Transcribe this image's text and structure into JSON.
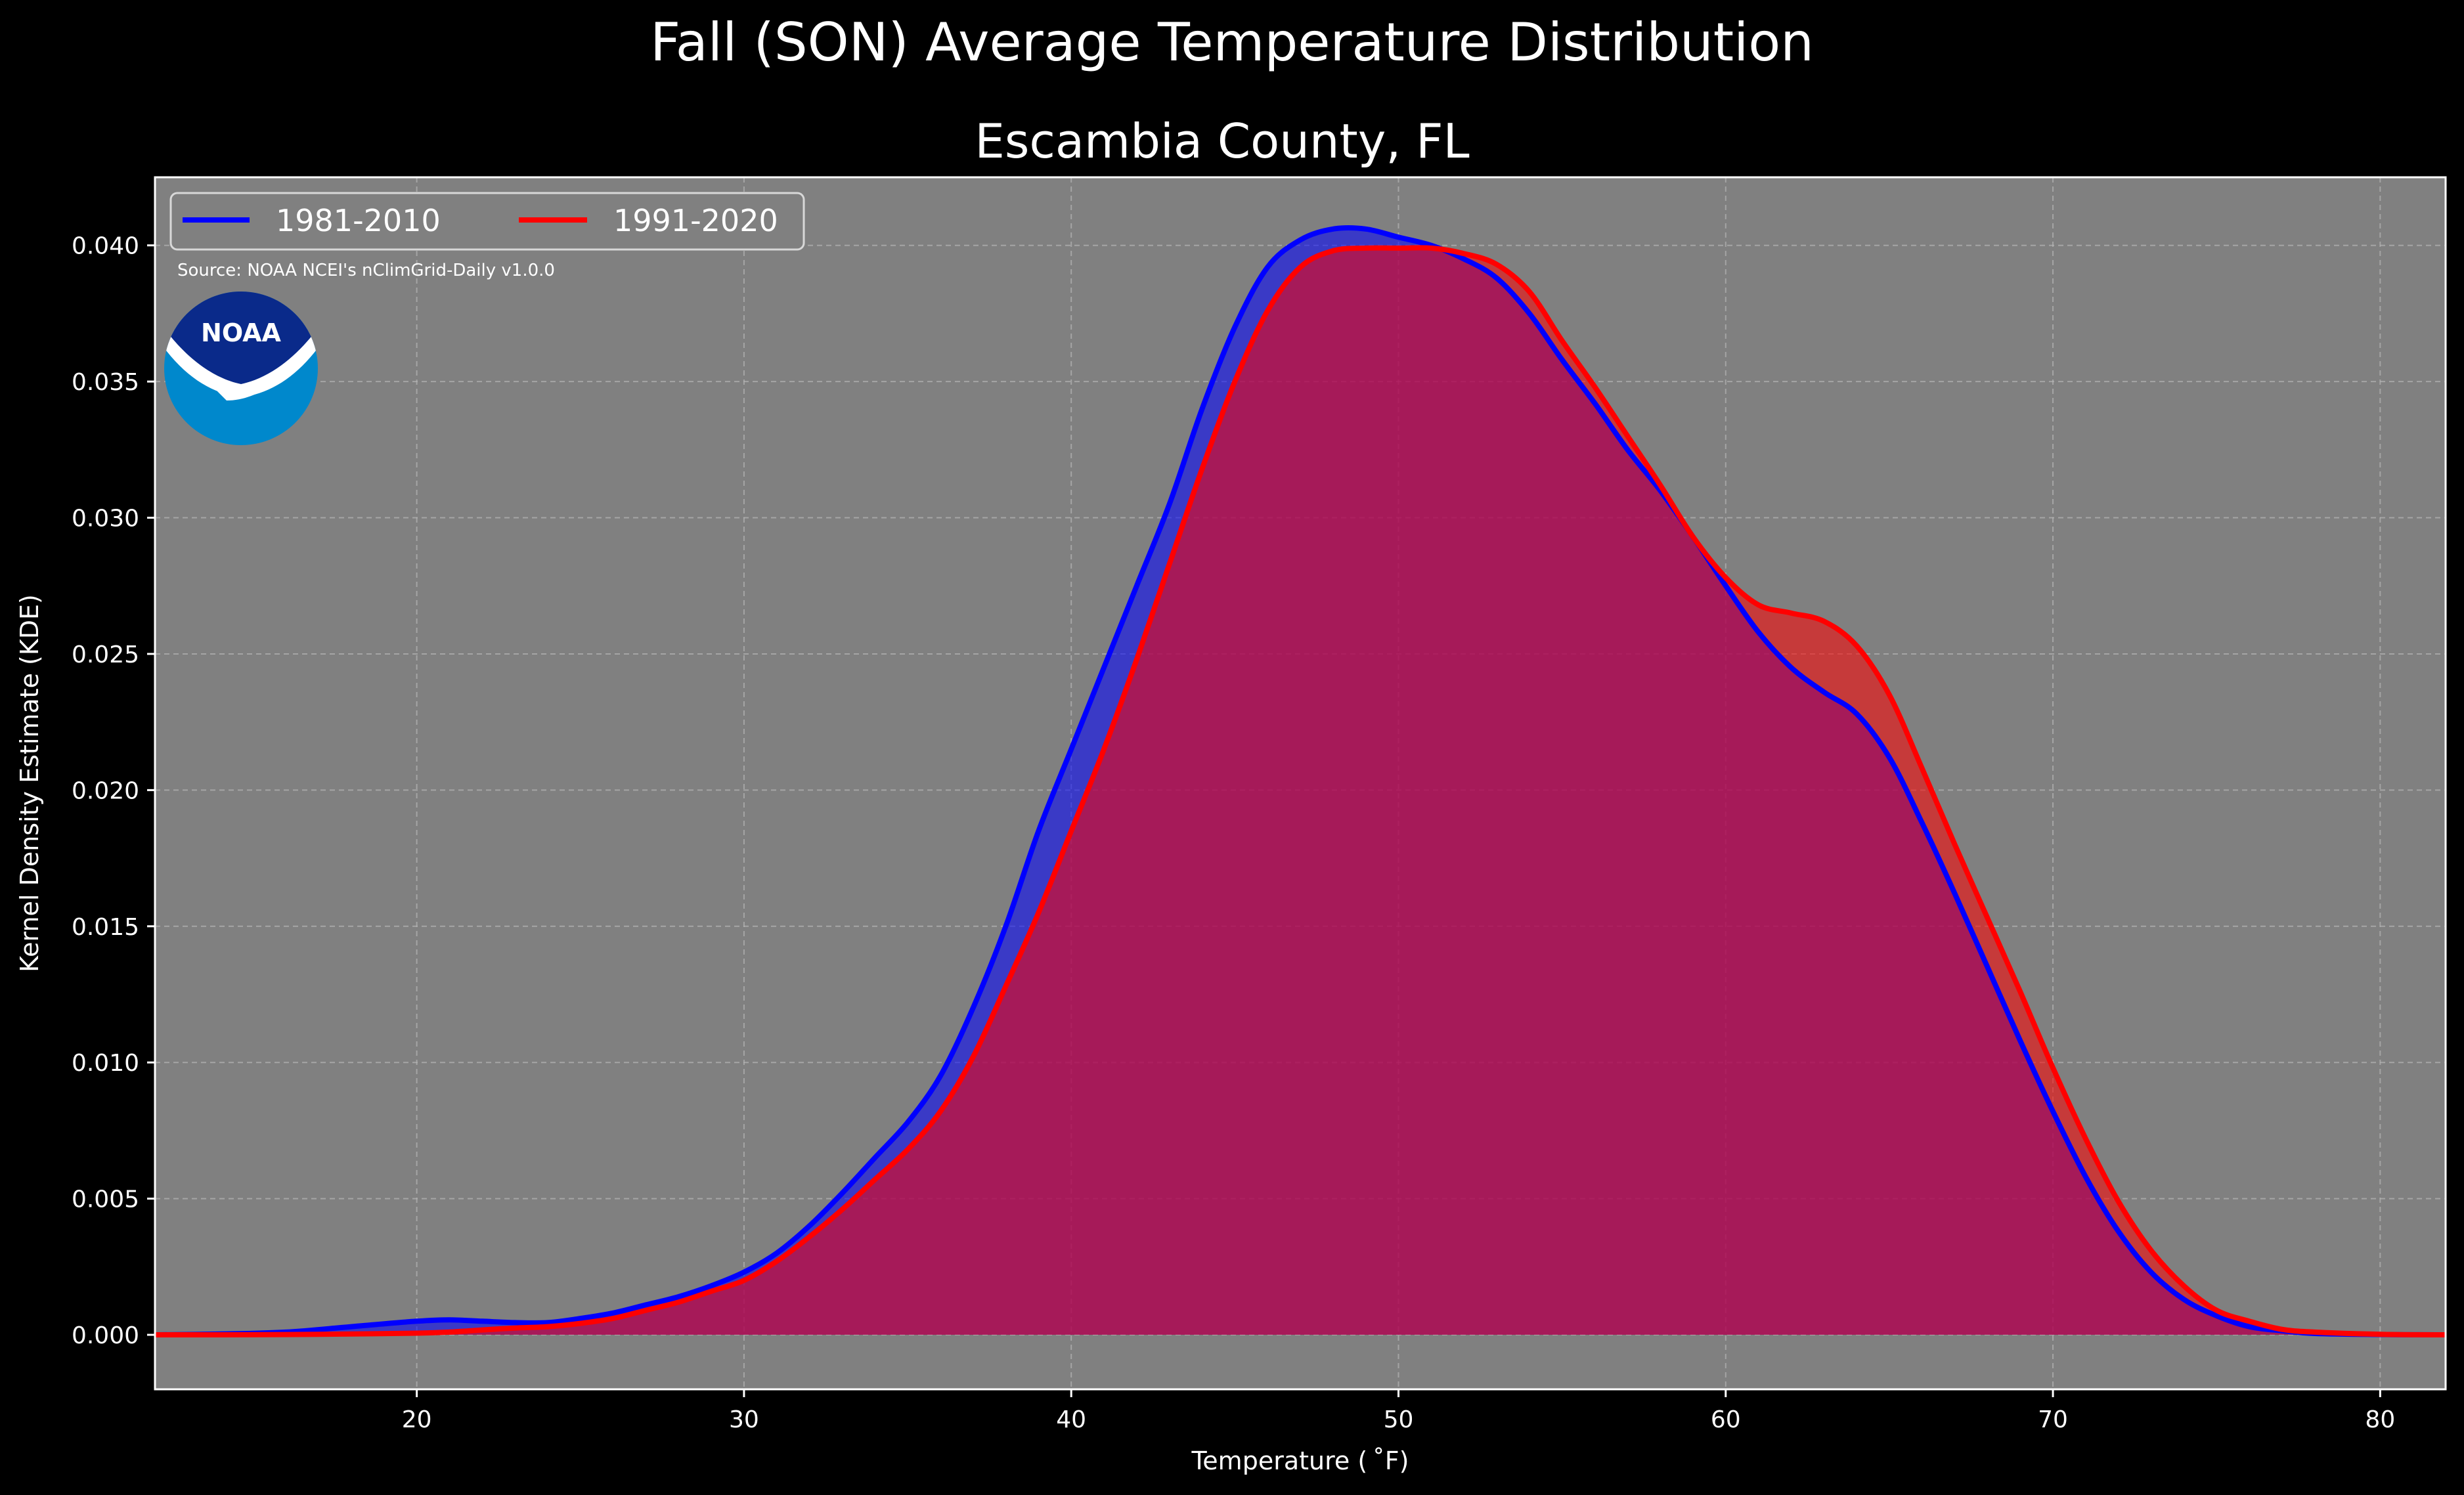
{
  "page": {
    "title": "Fall (SON) Average Temperature Distribution"
  },
  "chart_data": {
    "type": "area",
    "title": "Escambia County, FL",
    "xlabel": "Temperature ($^\\circ$F)",
    "xlabel_display": "Temperature ( ˚F)",
    "ylabel": "Kernel Density Estimate (KDE)",
    "xlim": [
      12,
      82
    ],
    "ylim": [
      -0.002,
      0.0425
    ],
    "x_ticks": [
      20,
      30,
      40,
      50,
      60,
      70,
      80
    ],
    "y_ticks": [
      0.0,
      0.005,
      0.01,
      0.015,
      0.02,
      0.025,
      0.03,
      0.035,
      0.04
    ],
    "y_tick_labels": [
      "0.000",
      "0.005",
      "0.010",
      "0.015",
      "0.020",
      "0.025",
      "0.030",
      "0.035",
      "0.040"
    ],
    "grid": true,
    "legend": "top-left",
    "source": "Source: NOAA NCEI's nClimGrid-Daily v1.0.0",
    "logo_text": "NOAA",
    "colors": {
      "background": "#000000",
      "plot_background": "#808080",
      "series_1": "#0000ff",
      "series_2": "#ff0000",
      "overlap_fill": "#9e1f5c"
    },
    "series": [
      {
        "name": "1981-2010",
        "color": "#0000ff",
        "x": [
          12,
          14,
          16,
          18,
          20,
          21,
          22,
          23,
          24,
          25,
          26,
          27,
          28,
          29,
          30,
          31,
          32,
          33,
          34,
          35,
          36,
          37,
          38,
          39,
          40,
          41,
          42,
          43,
          44,
          45,
          46,
          47,
          48,
          49,
          50,
          51,
          52,
          53,
          54,
          55,
          56,
          57,
          58,
          59,
          60,
          61,
          62,
          63,
          64,
          65,
          66,
          67,
          68,
          69,
          70,
          71,
          72,
          73,
          74,
          75,
          76,
          77,
          78,
          80,
          82
        ],
        "y": [
          0.0,
          3e-05,
          0.0001,
          0.0003,
          0.0005,
          0.00055,
          0.0005,
          0.00045,
          0.00045,
          0.0006,
          0.0008,
          0.0011,
          0.0014,
          0.0018,
          0.0023,
          0.003,
          0.004,
          0.0052,
          0.0065,
          0.0078,
          0.0095,
          0.012,
          0.015,
          0.0185,
          0.0215,
          0.0245,
          0.0275,
          0.0305,
          0.034,
          0.037,
          0.0392,
          0.0402,
          0.0406,
          0.0406,
          0.0403,
          0.04,
          0.0395,
          0.0388,
          0.0375,
          0.0358,
          0.0342,
          0.0325,
          0.031,
          0.0293,
          0.0275,
          0.0258,
          0.0245,
          0.0236,
          0.0228,
          0.0212,
          0.0188,
          0.0162,
          0.0135,
          0.0108,
          0.0082,
          0.0058,
          0.0038,
          0.0023,
          0.0013,
          0.0007,
          0.0003,
          0.00015,
          5e-05,
          1e-05,
          0.0
        ]
      },
      {
        "name": "1991-2020",
        "color": "#ff0000",
        "x": [
          12,
          14,
          16,
          18,
          20,
          21,
          22,
          23,
          24,
          25,
          26,
          27,
          28,
          29,
          30,
          31,
          32,
          33,
          34,
          35,
          36,
          37,
          38,
          39,
          40,
          41,
          42,
          43,
          44,
          45,
          46,
          47,
          48,
          49,
          50,
          51,
          52,
          53,
          54,
          55,
          56,
          57,
          58,
          59,
          60,
          61,
          62,
          63,
          64,
          65,
          66,
          67,
          68,
          69,
          70,
          71,
          72,
          73,
          74,
          75,
          76,
          77,
          78,
          80,
          82
        ],
        "y": [
          0.0,
          0.0,
          1e-05,
          3e-05,
          6e-05,
          0.0001,
          0.00018,
          0.00025,
          0.0003,
          0.00042,
          0.0006,
          0.0009,
          0.0012,
          0.0016,
          0.002,
          0.0027,
          0.0036,
          0.0046,
          0.0057,
          0.0068,
          0.0082,
          0.0102,
          0.0128,
          0.0155,
          0.0185,
          0.0215,
          0.0248,
          0.0283,
          0.0318,
          0.035,
          0.0376,
          0.0392,
          0.0398,
          0.0399,
          0.0399,
          0.0399,
          0.0397,
          0.0393,
          0.0383,
          0.0365,
          0.0348,
          0.033,
          0.0312,
          0.0293,
          0.0278,
          0.0268,
          0.0265,
          0.0262,
          0.0253,
          0.0235,
          0.0208,
          0.018,
          0.0153,
          0.0126,
          0.0098,
          0.0072,
          0.0049,
          0.0031,
          0.0018,
          0.0009,
          0.0005,
          0.0002,
          0.0001,
          2e-05,
          0.0
        ]
      }
    ]
  }
}
